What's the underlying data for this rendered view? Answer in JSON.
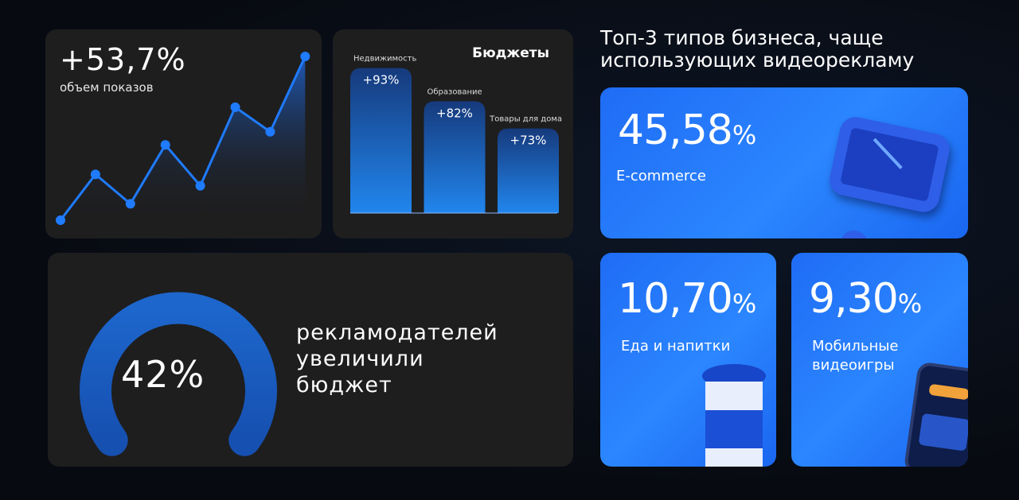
{
  "line_card": {
    "value": "+53,7%",
    "label": "объем показов"
  },
  "bar_card": {
    "title": "Бюджеты"
  },
  "gauge_card": {
    "value": "42%",
    "text_lines": [
      "рекламодателей",
      "увеличили",
      "бюджет"
    ]
  },
  "right": {
    "title_lines": [
      "Топ-3 типов бизнеса, чаще",
      "использующих видеорекламу"
    ],
    "cards": [
      {
        "value": "45,58",
        "unit": "%",
        "label_lines": [
          "E-commerce"
        ],
        "icon": "shopping-cart-icon"
      },
      {
        "value": "10,70",
        "unit": "%",
        "label_lines": [
          "Еда и напитки"
        ],
        "icon": "coffee-cup-icon"
      },
      {
        "value": "9,30",
        "unit": "%",
        "label_lines": [
          "Мобильные",
          "видеоигры"
        ],
        "icon": "smartphone-icon"
      }
    ]
  },
  "colors": {
    "accent": "#1f7bff",
    "card_dark": "#1e1e1f",
    "card_blue": "#2b86ff"
  },
  "chart_data": [
    {
      "type": "area",
      "series": [
        {
          "values": [
            0,
            28,
            10,
            46,
            21,
            69,
            54,
            100
          ]
        }
      ],
      "title": "",
      "xlabel": "",
      "ylabel": "",
      "grid": false
    },
    {
      "type": "bar",
      "title": "Бюджеты",
      "categories": [
        "Недвижимость",
        "Образование",
        "Товары для дома"
      ],
      "values": [
        93,
        82,
        73
      ],
      "data_labels": [
        "+93%",
        "+82%",
        "+73%"
      ]
    },
    {
      "type": "gauge",
      "value": 42,
      "label": "42%"
    }
  ]
}
